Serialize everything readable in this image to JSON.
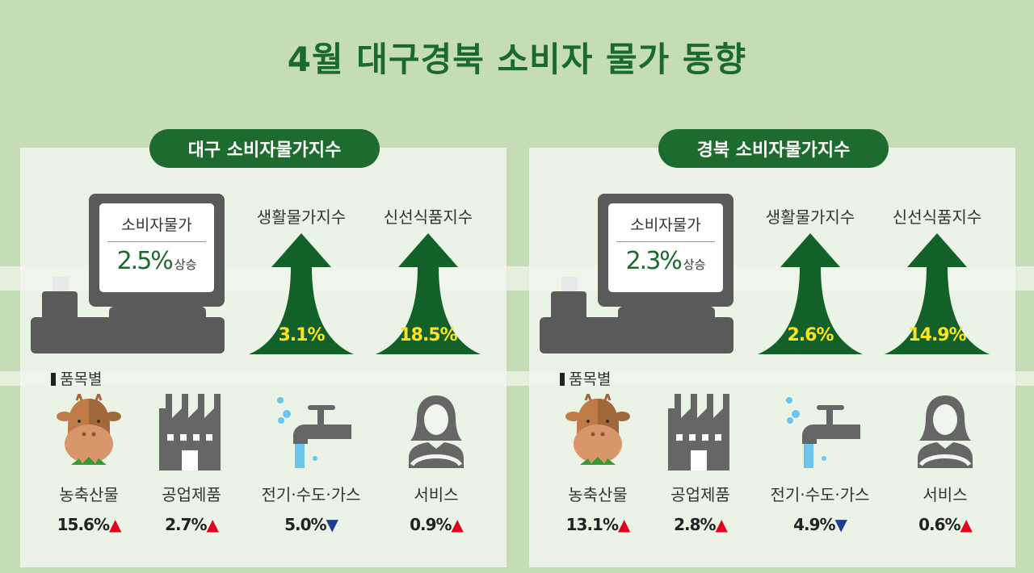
{
  "title": "4월 대구경북 소비자 물가 동향",
  "colors": {
    "accent": "#1d6b2e",
    "arrow_value": "#ffe21a",
    "up": "#e3001b",
    "down": "#1b3f8c"
  },
  "panels": [
    {
      "header": "대구 소비자물가지수",
      "cpi_label": "소비자물가",
      "cpi_value": "2.5%",
      "cpi_suffix": "상승",
      "arrows": [
        {
          "label": "생활물가지수",
          "value": "3.1%"
        },
        {
          "label": "신선식품지수",
          "value": "18.5%"
        }
      ],
      "category_title": "품목별",
      "items": [
        {
          "label": "농축산물",
          "value": "15.6%",
          "dir": "up",
          "icon": "cow-icon"
        },
        {
          "label": "공업제품",
          "value": "2.7%",
          "dir": "up",
          "icon": "factory-icon"
        },
        {
          "label": "전기·수도·가스",
          "value": "5.0%",
          "dir": "down",
          "icon": "faucet-icon"
        },
        {
          "label": "서비스",
          "value": "0.9%",
          "dir": "up",
          "icon": "operator-icon"
        }
      ]
    },
    {
      "header": "경북 소비자물가지수",
      "cpi_label": "소비자물가",
      "cpi_value": "2.3%",
      "cpi_suffix": "상승",
      "arrows": [
        {
          "label": "생활물가지수",
          "value": "2.6%"
        },
        {
          "label": "신선식품지수",
          "value": "14.9%"
        }
      ],
      "category_title": "품목별",
      "items": [
        {
          "label": "농축산물",
          "value": "13.1%",
          "dir": "up",
          "icon": "cow-icon"
        },
        {
          "label": "공업제품",
          "value": "2.8%",
          "dir": "up",
          "icon": "factory-icon"
        },
        {
          "label": "전기·수도·가스",
          "value": "4.9%",
          "dir": "down",
          "icon": "faucet-icon"
        },
        {
          "label": "서비스",
          "value": "0.6%",
          "dir": "up",
          "icon": "operator-icon"
        }
      ]
    }
  ]
}
